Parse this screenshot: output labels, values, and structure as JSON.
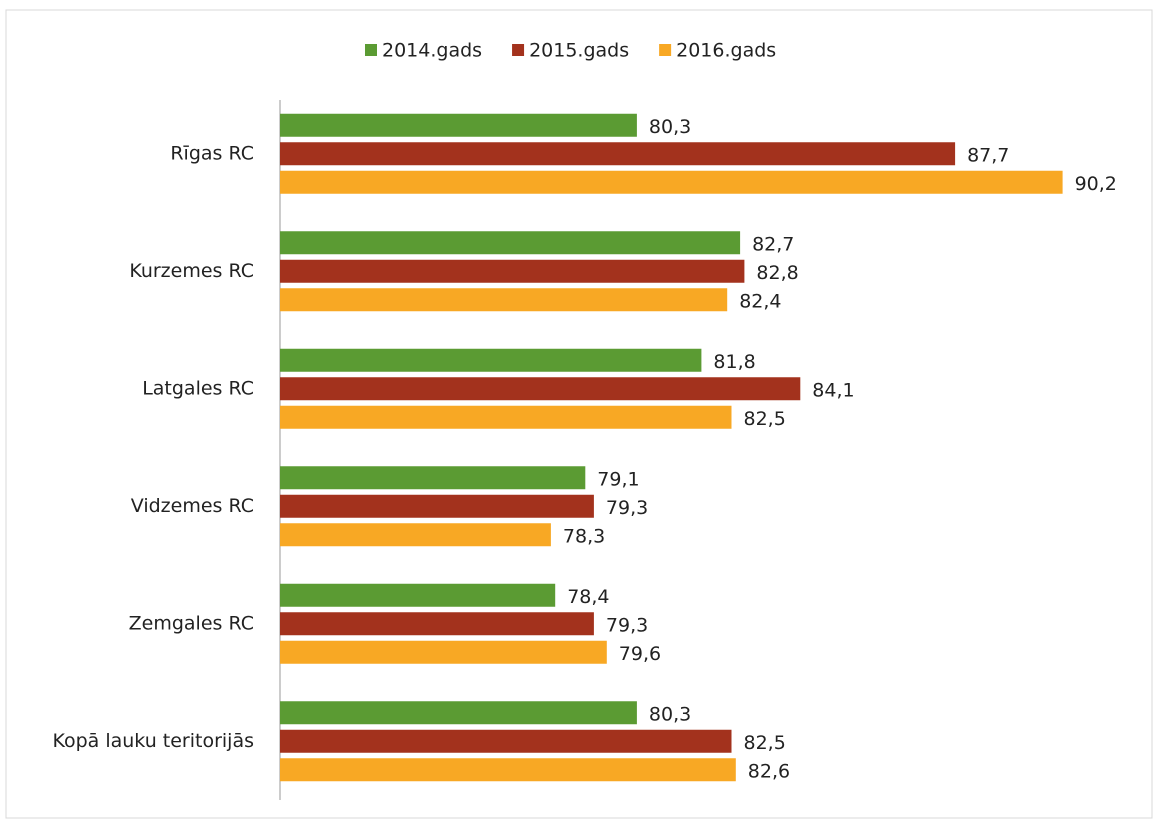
{
  "chart_data": {
    "type": "bar",
    "orientation": "horizontal",
    "categories": [
      "Rīgas RC",
      "Kurzemes RC",
      "Latgales RC",
      "Vidzemes RC",
      "Zemgales RC",
      "Kopā lauku teritorijās"
    ],
    "series": [
      {
        "name": "2014.gads",
        "color": "#5b9b33",
        "values": [
          80.3,
          82.7,
          81.8,
          79.1,
          78.4,
          80.3
        ],
        "value_labels": [
          "80,3",
          "82,7",
          "81,8",
          "79,1",
          "78,4",
          "80,3"
        ]
      },
      {
        "name": "2015.gads",
        "color": "#a3321d",
        "values": [
          87.7,
          82.8,
          84.1,
          79.3,
          79.3,
          82.5
        ],
        "value_labels": [
          "87,7",
          "82,8",
          "84,1",
          "79,3",
          "79,3",
          "82,5"
        ]
      },
      {
        "name": "2016.gads",
        "color": "#f8a824",
        "values": [
          90.2,
          82.4,
          82.5,
          78.3,
          79.6,
          82.6
        ],
        "value_labels": [
          "90,2",
          "82,4",
          "82,5",
          "78,3",
          "79,6",
          "82,6"
        ]
      }
    ],
    "xlim": [
      72,
      92
    ],
    "legend": "top"
  }
}
